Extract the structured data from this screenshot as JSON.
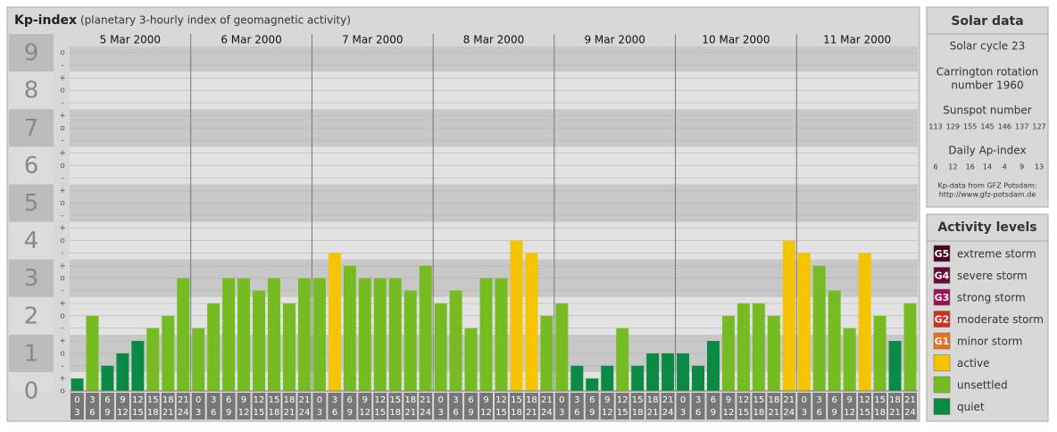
{
  "chart_data": {
    "type": "bar",
    "title": "Kp-index",
    "subtitle": "(planetary 3-hourly index of geomagnetic activity)",
    "days": [
      "5 Mar 2000",
      "6 Mar 2000",
      "7 Mar 2000",
      "8 Mar 2000",
      "9 Mar 2000",
      "10 Mar 2000",
      "11 Mar 2000"
    ],
    "slots": [
      [
        0,
        3
      ],
      [
        3,
        6
      ],
      [
        6,
        9
      ],
      [
        9,
        12
      ],
      [
        12,
        15
      ],
      [
        15,
        18
      ],
      [
        18,
        21
      ],
      [
        21,
        24
      ]
    ],
    "values": [
      0.33,
      2,
      0.67,
      1,
      1.33,
      1.67,
      2,
      3,
      1.67,
      2.33,
      3,
      3,
      2.67,
      3,
      2.33,
      3,
      3,
      3.67,
      3.33,
      3,
      3,
      3,
      2.67,
      3.33,
      2.33,
      2.67,
      1.67,
      3,
      3,
      4,
      3.67,
      2,
      2.33,
      0.67,
      0.33,
      0.67,
      1.67,
      0.67,
      1,
      1,
      1,
      0.67,
      1.33,
      2,
      2.33,
      2.33,
      2,
      4,
      3.67,
      3.33,
      2.67,
      1.67,
      3.67,
      2,
      1.33,
      2.33
    ],
    "colors": [
      "#0a8a44",
      "#77bb22",
      "#0a8a44",
      "#0a8a44",
      "#0a8a44",
      "#77bb22",
      "#77bb22",
      "#77bb22",
      "#77bb22",
      "#77bb22",
      "#77bb22",
      "#77bb22",
      "#77bb22",
      "#77bb22",
      "#77bb22",
      "#77bb22",
      "#77bb22",
      "#f5c400",
      "#77bb22",
      "#77bb22",
      "#77bb22",
      "#77bb22",
      "#77bb22",
      "#77bb22",
      "#77bb22",
      "#77bb22",
      "#77bb22",
      "#77bb22",
      "#77bb22",
      "#f5c400",
      "#f5c400",
      "#77bb22",
      "#77bb22",
      "#0a8a44",
      "#0a8a44",
      "#0a8a44",
      "#77bb22",
      "#0a8a44",
      "#0a8a44",
      "#0a8a44",
      "#0a8a44",
      "#0a8a44",
      "#0a8a44",
      "#77bb22",
      "#77bb22",
      "#77bb22",
      "#77bb22",
      "#f5c400",
      "#f5c400",
      "#77bb22",
      "#77bb22",
      "#77bb22",
      "#f5c400",
      "#77bb22",
      "#0a8a44",
      "#77bb22"
    ],
    "ylim": [
      0,
      9.5
    ],
    "yticks": [
      0,
      1,
      2,
      3,
      4,
      5,
      6,
      7,
      8,
      9
    ],
    "yminorticks": [
      {
        "value": 0,
        "label": "o"
      },
      {
        "value": 0.33,
        "label": "+"
      },
      {
        "value": 0.67,
        "label": "-"
      },
      {
        "value": 1,
        "label": "o"
      },
      {
        "value": 1.33,
        "label": "+"
      },
      {
        "value": 1.67,
        "label": "-"
      },
      {
        "value": 2,
        "label": "o"
      },
      {
        "value": 2.33,
        "label": "+"
      },
      {
        "value": 2.67,
        "label": "-"
      },
      {
        "value": 3,
        "label": "o"
      },
      {
        "value": 3.33,
        "label": "+"
      },
      {
        "value": 3.67,
        "label": "-"
      },
      {
        "value": 4,
        "label": "o"
      },
      {
        "value": 4.33,
        "label": "+"
      },
      {
        "value": 4.67,
        "label": "-"
      },
      {
        "value": 5,
        "label": "o"
      },
      {
        "value": 5.33,
        "label": "+"
      },
      {
        "value": 5.67,
        "label": "-"
      },
      {
        "value": 6,
        "label": "o"
      },
      {
        "value": 6.33,
        "label": "+"
      },
      {
        "value": 6.67,
        "label": "-"
      },
      {
        "value": 7,
        "label": "o"
      },
      {
        "value": 7.33,
        "label": "+"
      },
      {
        "value": 7.67,
        "label": "-"
      },
      {
        "value": 8,
        "label": "o"
      },
      {
        "value": 8.33,
        "label": "+"
      },
      {
        "value": 8.67,
        "label": "-"
      },
      {
        "value": 9,
        "label": "o"
      }
    ],
    "grid": true
  },
  "solar_data": {
    "title": "Solar data",
    "cycle": "Solar cycle 23",
    "carrington": [
      "Carrington rotation",
      "number 1960"
    ],
    "sunspot_label": "Sunspot number",
    "sunspot_numbers": [
      113,
      129,
      155,
      145,
      146,
      137,
      127
    ],
    "ap_label": "Daily Ap-index",
    "ap_values": [
      6,
      12,
      16,
      14,
      4,
      9,
      13
    ],
    "source": "Kp-data from GFZ Potsdam:",
    "source_url": "http://www.gfz-potsdam.de"
  },
  "activity_levels": {
    "title": "Activity levels",
    "items": [
      {
        "badge": "G5",
        "label": "extreme storm",
        "color": "#4a0020"
      },
      {
        "badge": "G4",
        "label": "severe storm",
        "color": "#6a0a3a"
      },
      {
        "badge": "G3",
        "label": "strong storm",
        "color": "#a0105a"
      },
      {
        "badge": "G2",
        "label": "moderate storm",
        "color": "#d03020"
      },
      {
        "badge": "G1",
        "label": "minor storm",
        "color": "#e87020"
      },
      {
        "badge": "",
        "label": "active",
        "color": "#f5c400"
      },
      {
        "badge": "",
        "label": "unsettled",
        "color": "#77bb22"
      },
      {
        "badge": "",
        "label": "quiet",
        "color": "#0a8a44"
      }
    ]
  }
}
